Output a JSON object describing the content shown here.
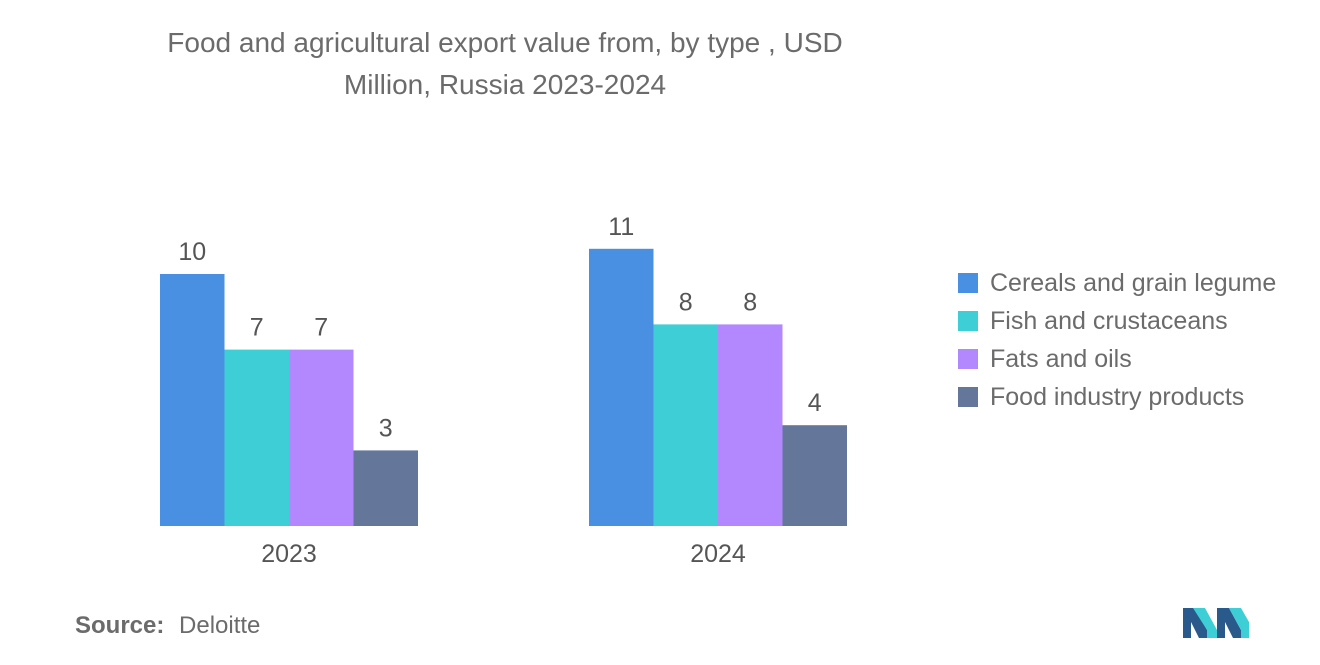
{
  "title_line1": "Food and agricultural export value from, by type , USD",
  "title_line2": "Million, Russia 2023-2024",
  "source_label": "Source:",
  "source_value": "Deloitte",
  "colors": {
    "cereals": "#4a90e2",
    "fish": "#3ecfd6",
    "fats": "#b388ff",
    "food": "#64779b"
  },
  "chart_data": {
    "type": "bar",
    "categories": [
      "2023",
      "2024"
    ],
    "series": [
      {
        "name": "Cereals and grain legume",
        "values": [
          10,
          11
        ],
        "color": "#4a90e2"
      },
      {
        "name": "Fish and crustaceans",
        "values": [
          7,
          8
        ],
        "color": "#3ecfd6"
      },
      {
        "name": "Fats and oils",
        "values": [
          7,
          8
        ],
        "color": "#b388ff"
      },
      {
        "name": "Food industry products",
        "values": [
          3,
          4
        ],
        "color": "#64779b"
      }
    ],
    "title": "Food and agricultural export value from, by type , USD Million, Russia 2023-2024",
    "legend_position": "right",
    "grid": false
  }
}
